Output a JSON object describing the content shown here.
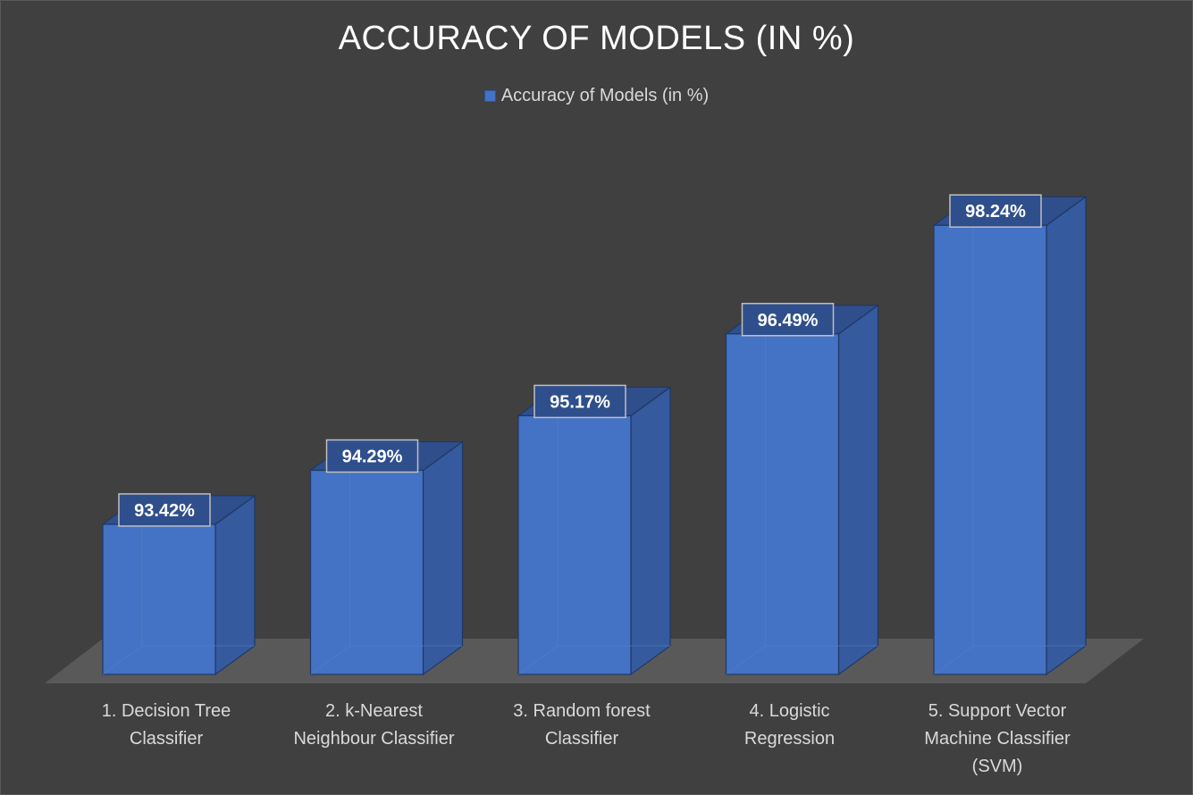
{
  "chart_data": {
    "type": "bar",
    "title": "ACCURACY OF MODELS (IN %)",
    "legend": {
      "position": "top",
      "entries": [
        "Accuracy of Models (in %)"
      ]
    },
    "categories": [
      [
        "1. Decision Tree",
        "Classifier"
      ],
      [
        "2. k-Nearest",
        "Neighbour Classifier"
      ],
      [
        "3. Random forest",
        "Classifier"
      ],
      [
        "4. Logistic",
        "Regression"
      ],
      [
        "5. Support Vector",
        "Machine Classifier",
        "(SVM)"
      ]
    ],
    "series": [
      {
        "name": "Accuracy of Models (in %)",
        "values": [
          93.42,
          94.29,
          95.17,
          96.49,
          98.24
        ],
        "labels": [
          "93.42%",
          "94.29%",
          "95.17%",
          "96.49%",
          "98.24%"
        ]
      }
    ],
    "ylim": [
      91,
      100
    ],
    "grid": false,
    "style": "3d-column"
  },
  "colors": {
    "background": "#404040",
    "bar_front": "#4472c4",
    "bar_side": "#365a9e",
    "bar_top": "#2f4f8c",
    "floor": "#595959",
    "text": "#d9d9d9",
    "title": "#ffffff"
  }
}
